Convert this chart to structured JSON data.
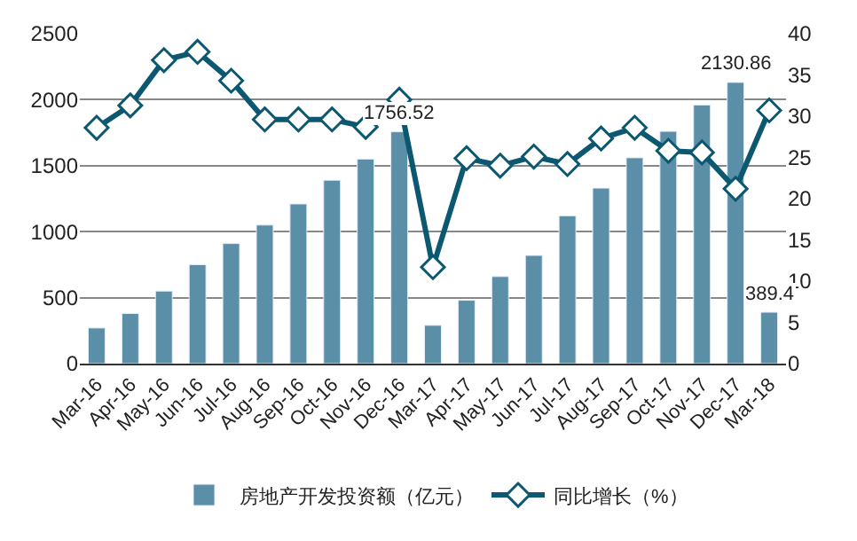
{
  "chart_data": {
    "type": "bar",
    "categories": [
      "Mar-16",
      "Apr-16",
      "May-16",
      "Jun-16",
      "Jul-16",
      "Aug-16",
      "Sep-16",
      "Oct-16",
      "Nov-16",
      "Dec-16",
      "Mar-17",
      "Apr-17",
      "May-17",
      "Jun-17",
      "Jul-17",
      "Aug-17",
      "Sep-17",
      "Oct-17",
      "Nov-17",
      "Dec-17",
      "Mar-18"
    ],
    "series": [
      {
        "name": "房地产开发投资额（亿元）",
        "color": "#5b8fa8",
        "values": [
          270,
          380,
          550,
          750,
          910,
          1050,
          1210,
          1390,
          1550,
          1756.52,
          290,
          480,
          660,
          820,
          1120,
          1330,
          1560,
          1760,
          1960,
          2130.86,
          389.4
        ],
        "value_labels": [
          null,
          null,
          null,
          null,
          null,
          null,
          null,
          null,
          null,
          "1756.52",
          null,
          null,
          null,
          null,
          null,
          null,
          null,
          null,
          null,
          "2130.86",
          "389.4"
        ]
      },
      {
        "name": "同比增长（%）",
        "type": "line",
        "axis": "y2",
        "color": "#0b5870",
        "marker": "diamond",
        "values": [
          28.6,
          31.3,
          36.8,
          37.8,
          34.3,
          29.6,
          29.6,
          29.6,
          28.7,
          32.0,
          11.7,
          24.9,
          24.0,
          25.1,
          24.2,
          27.3,
          28.6,
          25.8,
          25.6,
          21.2,
          30.7
        ]
      }
    ],
    "ylim": [
      0,
      2500
    ],
    "yticks": [
      0,
      500,
      1000,
      1500,
      2000,
      2500
    ],
    "y2lim": [
      0,
      40
    ],
    "y2ticks": [
      0,
      5,
      10,
      15,
      20,
      25,
      30,
      35,
      40
    ],
    "grid": "y",
    "legend": "bottom"
  }
}
